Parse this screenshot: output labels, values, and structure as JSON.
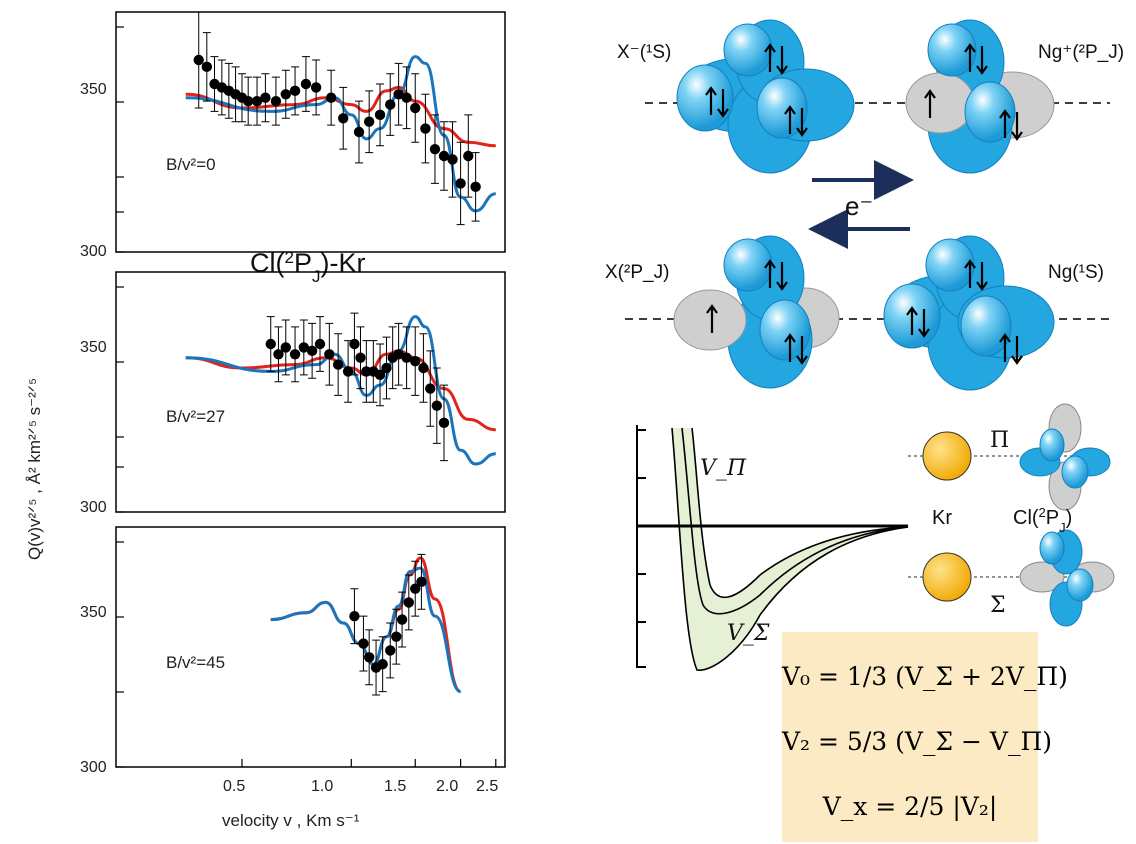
{
  "chart_data": [
    {
      "type": "scatter",
      "panel": "top",
      "label": "B/v²=0",
      "yticks": [
        "350",
        "300"
      ],
      "ylim": [
        300,
        370
      ],
      "x_scale": "log",
      "points": [
        [
          0.38,
          356,
          14
        ],
        [
          0.4,
          354,
          10
        ],
        [
          0.42,
          349,
          8
        ],
        [
          0.44,
          348,
          8
        ],
        [
          0.46,
          347,
          8
        ],
        [
          0.48,
          346,
          8
        ],
        [
          0.5,
          345,
          7
        ],
        [
          0.52,
          344,
          7
        ],
        [
          0.55,
          344,
          7
        ],
        [
          0.58,
          345,
          7
        ],
        [
          0.62,
          344,
          7
        ],
        [
          0.66,
          346,
          7
        ],
        [
          0.7,
          347,
          7
        ],
        [
          0.75,
          349,
          8
        ],
        [
          0.8,
          348,
          8
        ],
        [
          0.88,
          345,
          8
        ],
        [
          0.95,
          339,
          9
        ],
        [
          1.05,
          335,
          9
        ],
        [
          1.12,
          338,
          9
        ],
        [
          1.2,
          340,
          9
        ],
        [
          1.28,
          343,
          9
        ],
        [
          1.35,
          346,
          9
        ],
        [
          1.42,
          345,
          9
        ],
        [
          1.5,
          342,
          10
        ],
        [
          1.6,
          336,
          10
        ],
        [
          1.7,
          330,
          10
        ],
        [
          1.8,
          328,
          10
        ],
        [
          1.9,
          327,
          11
        ],
        [
          2.0,
          320,
          12
        ],
        [
          2.1,
          328,
          12
        ],
        [
          2.2,
          319,
          10
        ]
      ],
      "red_curve": [
        [
          0.35,
          346
        ],
        [
          0.5,
          342
        ],
        [
          0.7,
          343
        ],
        [
          0.85,
          345
        ],
        [
          1.0,
          343
        ],
        [
          1.1,
          341
        ],
        [
          1.25,
          347
        ],
        [
          1.35,
          348
        ],
        [
          1.5,
          344
        ],
        [
          1.8,
          336
        ],
        [
          2.1,
          332
        ],
        [
          2.5,
          331
        ]
      ],
      "blue_curve": [
        [
          0.35,
          345
        ],
        [
          0.6,
          341
        ],
        [
          0.8,
          343
        ],
        [
          0.9,
          345
        ],
        [
          1.0,
          340
        ],
        [
          1.1,
          333
        ],
        [
          1.2,
          336
        ],
        [
          1.35,
          346
        ],
        [
          1.5,
          357
        ],
        [
          1.6,
          355
        ],
        [
          1.8,
          334
        ],
        [
          2.0,
          316
        ],
        [
          2.2,
          312
        ],
        [
          2.5,
          317
        ]
      ]
    },
    {
      "type": "scatter",
      "panel": "middle",
      "label": "B/v²=27",
      "yticks": [
        "350",
        "300"
      ],
      "ylim": [
        300,
        370
      ],
      "x_scale": "log",
      "points": [
        [
          0.6,
          349,
          8
        ],
        [
          0.63,
          346,
          8
        ],
        [
          0.66,
          348,
          8
        ],
        [
          0.7,
          346,
          8
        ],
        [
          0.74,
          348,
          8
        ],
        [
          0.78,
          347,
          8
        ],
        [
          0.82,
          349,
          8
        ],
        [
          0.87,
          346,
          9
        ],
        [
          0.92,
          343,
          9
        ],
        [
          0.98,
          341,
          9
        ],
        [
          1.02,
          349,
          9
        ],
        [
          1.06,
          345,
          9
        ],
        [
          1.1,
          341,
          9
        ],
        [
          1.15,
          341,
          9
        ],
        [
          1.2,
          340,
          9
        ],
        [
          1.25,
          342,
          9
        ],
        [
          1.3,
          345,
          9
        ],
        [
          1.35,
          346,
          9
        ],
        [
          1.42,
          345,
          9
        ],
        [
          1.5,
          344,
          10
        ],
        [
          1.58,
          342,
          10
        ],
        [
          1.65,
          336,
          11
        ],
        [
          1.72,
          331,
          11
        ],
        [
          1.8,
          326,
          11
        ]
      ],
      "red_curve": [
        [
          0.35,
          345
        ],
        [
          0.5,
          342
        ],
        [
          0.7,
          343
        ],
        [
          0.85,
          345
        ],
        [
          1.0,
          342
        ],
        [
          1.1,
          340
        ],
        [
          1.25,
          346
        ],
        [
          1.35,
          347
        ],
        [
          1.5,
          345
        ],
        [
          1.8,
          336
        ],
        [
          2.1,
          327
        ],
        [
          2.5,
          324
        ]
      ],
      "blue_curve": [
        [
          0.35,
          345
        ],
        [
          0.6,
          341
        ],
        [
          0.8,
          343
        ],
        [
          0.9,
          346
        ],
        [
          1.0,
          341
        ],
        [
          1.1,
          334
        ],
        [
          1.2,
          337
        ],
        [
          1.35,
          347
        ],
        [
          1.5,
          357
        ],
        [
          1.6,
          354
        ],
        [
          1.8,
          333
        ],
        [
          2.0,
          318
        ],
        [
          2.2,
          314
        ],
        [
          2.5,
          317
        ]
      ]
    },
    {
      "type": "scatter",
      "panel": "bottom",
      "label": "B/v²=45",
      "yticks": [
        "350",
        "300"
      ],
      "ylim": [
        300,
        370
      ],
      "x_scale": "log",
      "xticks": [
        "0.5",
        "1.0",
        "1.5",
        "2.0",
        "2.5"
      ],
      "xlabel": "velocity v , Km s⁻¹",
      "points": [
        [
          1.02,
          344,
          8
        ],
        [
          1.08,
          336,
          8
        ],
        [
          1.12,
          332,
          8
        ],
        [
          1.17,
          329,
          8
        ],
        [
          1.22,
          330,
          8
        ],
        [
          1.28,
          334,
          8
        ],
        [
          1.33,
          338,
          8
        ],
        [
          1.38,
          343,
          8
        ],
        [
          1.44,
          348,
          8
        ],
        [
          1.5,
          352,
          8
        ],
        [
          1.56,
          354,
          8
        ]
      ],
      "red_curve": [
        [
          0.6,
          343
        ],
        [
          0.75,
          345
        ],
        [
          0.85,
          348
        ],
        [
          0.95,
          342
        ],
        [
          1.05,
          336
        ],
        [
          1.15,
          330
        ],
        [
          1.25,
          338
        ],
        [
          1.35,
          346
        ],
        [
          1.45,
          356
        ],
        [
          1.55,
          361
        ],
        [
          1.7,
          349
        ],
        [
          2.0,
          322
        ]
      ],
      "blue_curve": [
        [
          0.6,
          343
        ],
        [
          0.75,
          345
        ],
        [
          0.85,
          348
        ],
        [
          0.95,
          342
        ],
        [
          1.05,
          336
        ],
        [
          1.15,
          330
        ],
        [
          1.25,
          338
        ],
        [
          1.35,
          347
        ],
        [
          1.45,
          357
        ],
        [
          1.55,
          358
        ],
        [
          1.7,
          344
        ],
        [
          2.0,
          322
        ]
      ]
    }
  ],
  "axes": {
    "ylabel": "Q(v)v²ᐟ⁵ , Å² km²ᐟ⁵ s⁻²ᐟ⁵"
  },
  "system_title": "Cl(²P_J)-Kr",
  "exchange": {
    "top_left": "X⁻(¹S)",
    "top_right": "Ng⁺(²P_J)",
    "bottom_left": "X(²P_J)",
    "bottom_right": "Ng(¹S)",
    "electron": "e⁻"
  },
  "potential": {
    "v_pi": "V_Π",
    "v_sigma": "V_Σ",
    "pi": "Π",
    "sigma": "Σ",
    "kr": "Kr",
    "cl": "Cl(²P_J)"
  },
  "equations": {
    "v0": "V₀ = 1/3 (V_Σ + 2V_Π)",
    "v2": "V₂ = 5/3 (V_Σ − V_Π)",
    "vx": "V_x = 2/5 |V₂|"
  },
  "colors": {
    "red": "#e2231a",
    "blue": "#1b75bb",
    "lobe": "#24a6e1",
    "lobe_dark": "#1283c3",
    "grey_lobe": "#cfcfcf",
    "kr_sphere": "#f6b400",
    "well_fill": "#e5f0d5",
    "arrow": "#1b2f5a",
    "equation_box": "#fbeac3"
  }
}
